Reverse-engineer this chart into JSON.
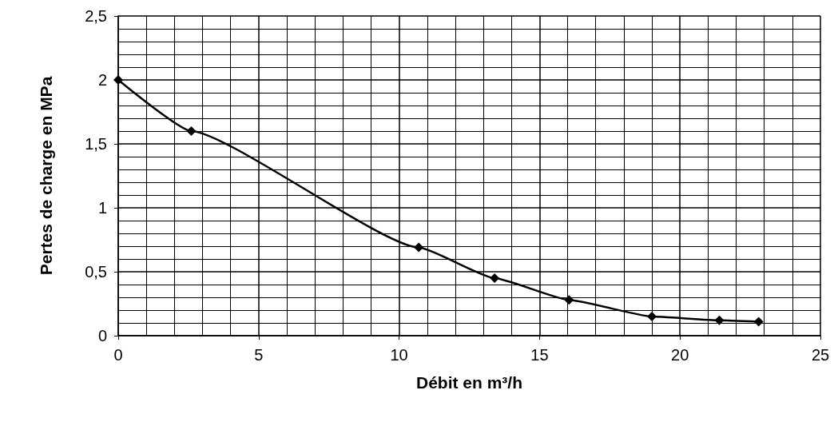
{
  "chart_data": {
    "type": "line",
    "xlabel": "Débit en m³/h",
    "ylabel": "Pertes de charge en MPa",
    "x": [
      0,
      2.6,
      10.7,
      13.4,
      16.05,
      19.0,
      21.4,
      22.8
    ],
    "series": [
      {
        "color": "#000000",
        "values": [
          2.0,
          1.6,
          0.69,
          0.45,
          0.28,
          0.15,
          0.12,
          0.11
        ]
      }
    ],
    "xlim": [
      0,
      25
    ],
    "xticks": [
      0,
      5,
      10,
      15,
      20,
      25
    ],
    "ylim": [
      0,
      2.5
    ],
    "yticks": [
      0,
      {
        "value": 0.5,
        "label": "0,5"
      },
      1,
      {
        "value": 1.5,
        "label": "1,5"
      },
      2,
      {
        "value": 2.5,
        "label": "2,5"
      }
    ],
    "grid": true,
    "marker": "diamond",
    "line_style": "solid"
  }
}
